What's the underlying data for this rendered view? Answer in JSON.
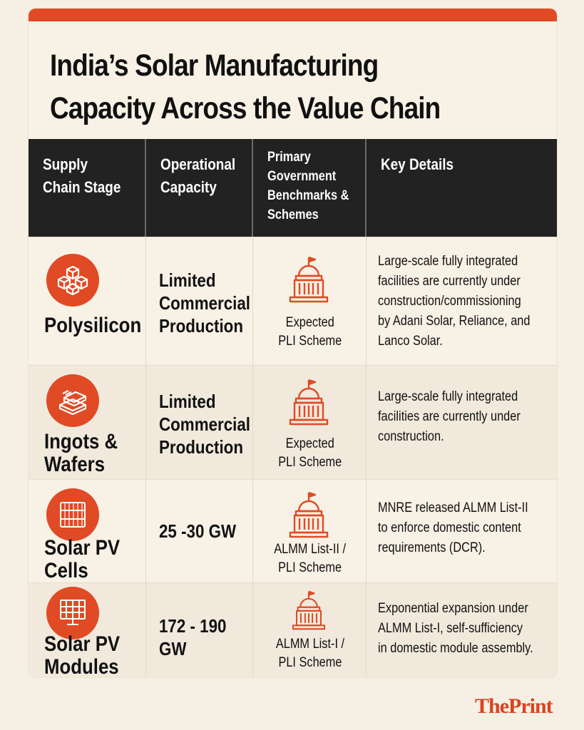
{
  "title": {
    "line1": "India’s Solar Manufacturing",
    "line2": "Capacity Across the Value Chain"
  },
  "colors": {
    "accent": "#e04a24",
    "header_bg": "#222222",
    "background": "#f8f1e5"
  },
  "table": {
    "headers": [
      "Supply\nChain Stage",
      "Operational\nCapacity",
      "Primary\nGovernment\nBenchmarks &\nSchemes",
      "Key Details"
    ],
    "rows": [
      {
        "icon": "polysilicon-cubes-icon",
        "stage": "Polysilicon",
        "capacity": "Limited\nCommercial\nProduction",
        "scheme": "Expected\nPLI Scheme",
        "details": "Large-scale fully integrated\nfacilities are currently under\nconstruction/commissioning\nby Adani Solar, Reliance, and\nLanco Solar."
      },
      {
        "icon": "ingots-wafers-icon",
        "stage": "Ingots &\nWafers",
        "capacity": "Limited\nCommercial\nProduction",
        "scheme": "Expected\nPLI Scheme",
        "details": "Large-scale fully integrated\nfacilities are currently under\nconstruction."
      },
      {
        "icon": "solar-cell-icon",
        "stage": "Solar PV\nCells",
        "capacity": "25 -30 GW",
        "scheme": "ALMM List-II /\nPLI Scheme",
        "details": "MNRE released ALMM List-II\nto enforce domestic content\nrequirements (DCR)."
      },
      {
        "icon": "solar-panel-icon",
        "stage": "Solar PV\nModules",
        "capacity": "172 - 190 GW",
        "scheme": "ALMM List-I /\nPLI Scheme",
        "details": "Exponential expansion under\nALMM List-I, self-sufficiency\nin domestic module assembly."
      }
    ]
  },
  "brand": "ThePrint"
}
